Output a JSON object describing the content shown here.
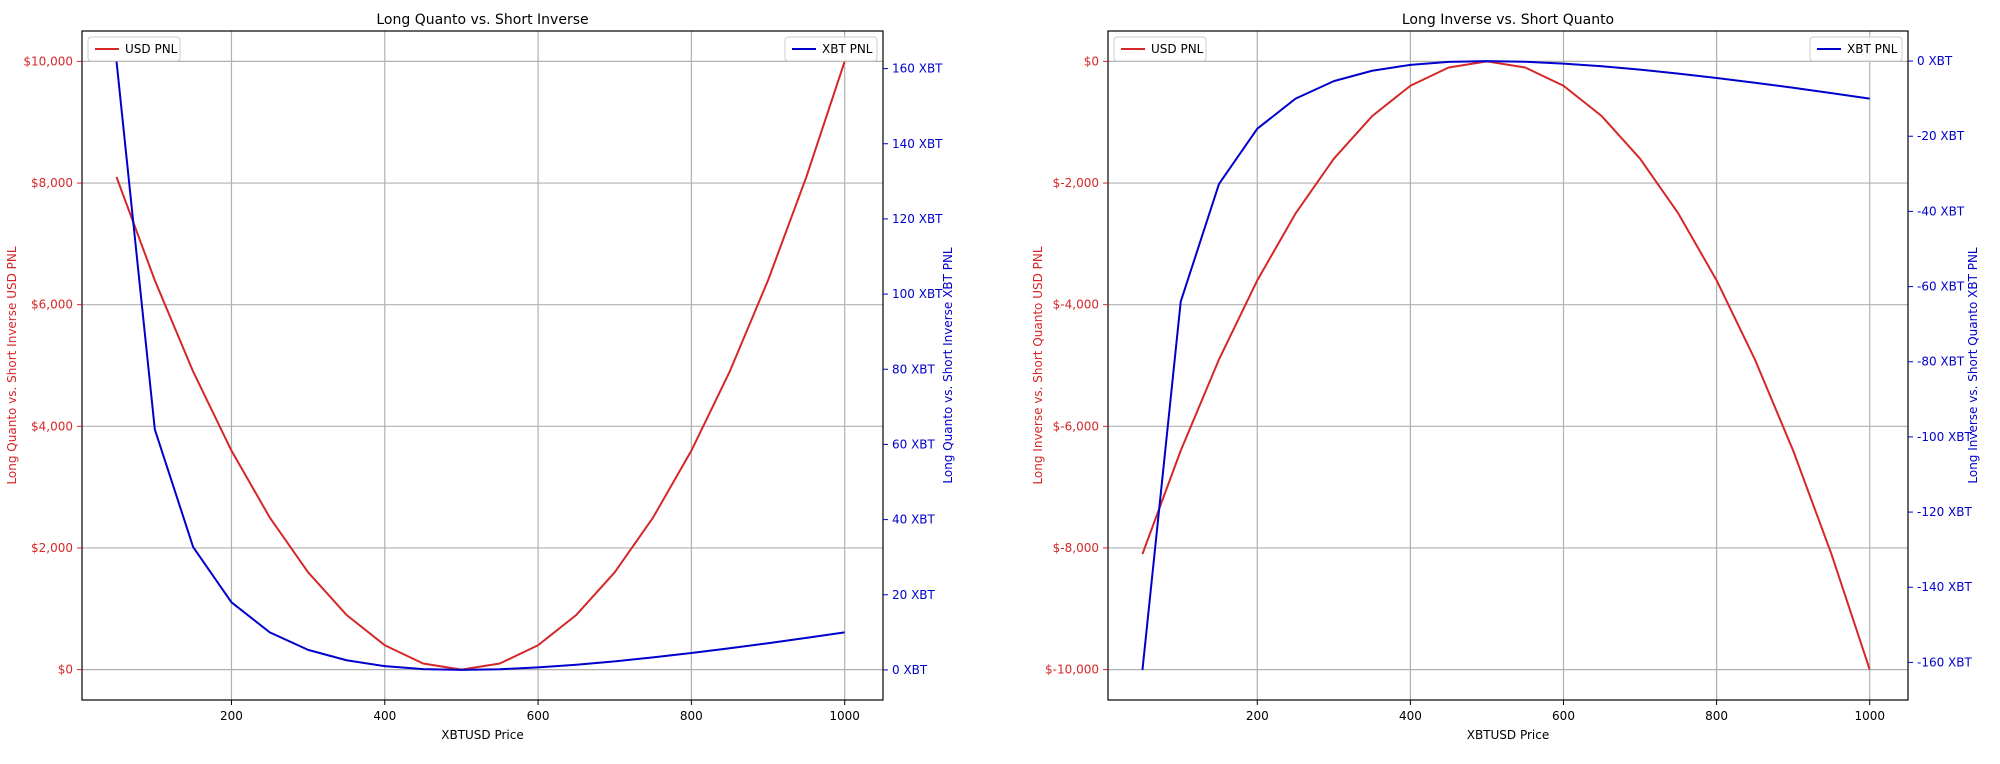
{
  "colors": {
    "usd": "#d62728",
    "xbt": "#0000cc",
    "axis": "#000000",
    "grid": "#b0b0b0"
  },
  "chart_data": [
    {
      "type": "line",
      "title": "Long Quanto vs. Short Inverse",
      "xlabel": "XBTUSD Price",
      "ylabel_left": "Long Quanto vs. Short Inverse USD PNL",
      "ylabel_right": "Long Quanto vs. Short Inverse XBT PNL",
      "xlim": [
        5,
        1050
      ],
      "ylim_left": [
        -500,
        10500
      ],
      "ylim_right": [
        -8,
        170
      ],
      "xticks": [
        200,
        400,
        600,
        800,
        1000
      ],
      "yticks_left": [
        0,
        2000,
        4000,
        6000,
        8000,
        10000
      ],
      "yticks_left_labels": [
        "$0",
        "$2,000",
        "$4,000",
        "$6,000",
        "$8,000",
        "$10,000"
      ],
      "yticks_right": [
        0,
        20,
        40,
        60,
        80,
        100,
        120,
        140,
        160
      ],
      "yticks_right_labels": [
        "0 XBT",
        "20 XBT",
        "40 XBT",
        "60 XBT",
        "80 XBT",
        "100 XBT",
        "120 XBT",
        "140 XBT",
        "160 XBT"
      ],
      "grid": true,
      "x": [
        50,
        100,
        150,
        200,
        250,
        300,
        350,
        400,
        450,
        500,
        550,
        600,
        650,
        700,
        750,
        800,
        850,
        900,
        950,
        1000
      ],
      "series": [
        {
          "name": "USD PNL",
          "axis": "left",
          "legend_position": "top-left",
          "values": [
            8100,
            6400,
            4900,
            3600,
            2500,
            1600,
            900,
            400,
            100,
            0,
            100,
            400,
            900,
            1600,
            2500,
            3600,
            4900,
            6400,
            8100,
            10000
          ]
        },
        {
          "name": "XBT PNL",
          "axis": "right",
          "legend_position": "top-right",
          "values": [
            162,
            64,
            32.7,
            18,
            10,
            5.33,
            2.57,
            1,
            0.22,
            0,
            0.18,
            0.67,
            1.38,
            2.29,
            3.33,
            4.5,
            5.76,
            7.11,
            8.53,
            10
          ]
        }
      ]
    },
    {
      "type": "line",
      "title": "Long Inverse vs. Short Quanto",
      "xlabel": "XBTUSD Price",
      "ylabel_left": "Long Inverse vs. Short Quanto USD PNL",
      "ylabel_right": "Long Inverse vs. Short Quanto XBT PNL",
      "xlim": [
        5,
        1050
      ],
      "ylim_left": [
        -10500,
        500
      ],
      "ylim_right": [
        -170,
        8
      ],
      "xticks": [
        200,
        400,
        600,
        800,
        1000
      ],
      "yticks_left": [
        0,
        -2000,
        -4000,
        -6000,
        -8000,
        -10000
      ],
      "yticks_left_labels": [
        "$0",
        "$-2,000",
        "$-4,000",
        "$-6,000",
        "$-8,000",
        "$-10,000"
      ],
      "yticks_right": [
        0,
        -20,
        -40,
        -60,
        -80,
        -100,
        -120,
        -140,
        -160
      ],
      "yticks_right_labels": [
        "0 XBT",
        "-20 XBT",
        "-40 XBT",
        "-60 XBT",
        "-80 XBT",
        "-100 XBT",
        "-120 XBT",
        "-140 XBT",
        "-160 XBT"
      ],
      "grid": true,
      "x": [
        50,
        100,
        150,
        200,
        250,
        300,
        350,
        400,
        450,
        500,
        550,
        600,
        650,
        700,
        750,
        800,
        850,
        900,
        950,
        1000
      ],
      "series": [
        {
          "name": "USD PNL",
          "axis": "left",
          "legend_position": "top-left",
          "values": [
            -8100,
            -6400,
            -4900,
            -3600,
            -2500,
            -1600,
            -900,
            -400,
            -100,
            0,
            -100,
            -400,
            -900,
            -1600,
            -2500,
            -3600,
            -4900,
            -6400,
            -8100,
            -10000
          ]
        },
        {
          "name": "XBT PNL",
          "axis": "right",
          "legend_position": "top-right",
          "values": [
            -162,
            -64,
            -32.7,
            -18,
            -10,
            -5.33,
            -2.57,
            -1,
            -0.22,
            0,
            -0.18,
            -0.67,
            -1.38,
            -2.29,
            -3.33,
            -4.5,
            -5.76,
            -7.11,
            -8.53,
            -10
          ]
        }
      ]
    }
  ]
}
